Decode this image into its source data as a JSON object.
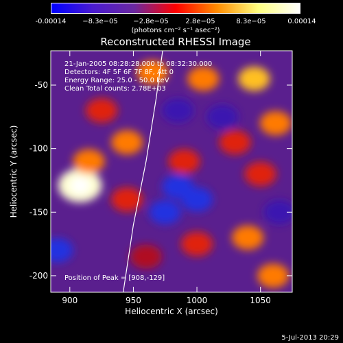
{
  "colorbar": {
    "ticks": [
      "-0.00014",
      "−8.3e−05",
      "−2.8e−05",
      "2.8e−05",
      "8.3e−05",
      "0.00014"
    ],
    "unit": "(photons cm⁻² s⁻¹ asec⁻²)",
    "colors": [
      "#0000ff",
      "#4a1bd0",
      "#6a28a0",
      "#ff0000",
      "#ff8c00",
      "#ffff80",
      "#ffffff"
    ]
  },
  "title": "Reconstructed RHESSI Image",
  "annotations": {
    "time_range": "21-Jan-2005 08:28:28.000 to 08:32:30.000",
    "detectors": "Detectors: 4F 5F 6F 7F 8F, Att 0",
    "energy": "Energy Range: 25.0 - 50.0 keV",
    "clean": "Clean    Total counts: 2.78E+03",
    "peak": "Position of Peak = [908,-129]"
  },
  "axes": {
    "xlabel": "Heliocentric X (arcsec)",
    "ylabel": "Heliocentric Y (arcsec)",
    "xlim": [
      885,
      1075
    ],
    "ylim": [
      -213,
      -23
    ],
    "xticks": [
      900,
      950,
      1000,
      1050
    ],
    "yticks": [
      -50,
      -100,
      -150,
      -200
    ]
  },
  "blobs": [
    {
      "x": 908,
      "y": -129,
      "v": 1.0
    },
    {
      "x": 915,
      "y": -110,
      "v": 0.55
    },
    {
      "x": 925,
      "y": -70,
      "v": 0.45
    },
    {
      "x": 945,
      "y": -95,
      "v": 0.5
    },
    {
      "x": 965,
      "y": -40,
      "v": 0.5
    },
    {
      "x": 1005,
      "y": -45,
      "v": 0.55
    },
    {
      "x": 1045,
      "y": -45,
      "v": 0.8
    },
    {
      "x": 1062,
      "y": -80,
      "v": 0.5
    },
    {
      "x": 1050,
      "y": -120,
      "v": 0.45
    },
    {
      "x": 1040,
      "y": -170,
      "v": 0.55
    },
    {
      "x": 1060,
      "y": -200,
      "v": 0.55
    },
    {
      "x": 990,
      "y": -110,
      "v": 0.35
    },
    {
      "x": 945,
      "y": -140,
      "v": 0.4
    },
    {
      "x": 1000,
      "y": -175,
      "v": 0.3
    },
    {
      "x": 960,
      "y": -185,
      "v": 0.25
    },
    {
      "x": 1030,
      "y": -95,
      "v": 0.35
    },
    {
      "x": 975,
      "y": -150,
      "v": -0.4
    },
    {
      "x": 1000,
      "y": -140,
      "v": -0.45
    },
    {
      "x": 985,
      "y": -130,
      "v": -0.35
    },
    {
      "x": 890,
      "y": -180,
      "v": -0.35
    },
    {
      "x": 1020,
      "y": -75,
      "v": -0.3
    },
    {
      "x": 985,
      "y": -70,
      "v": -0.3
    },
    {
      "x": 1065,
      "y": -150,
      "v": -0.25
    }
  ],
  "limb": [
    [
      973,
      -23
    ],
    [
      968,
      -60
    ],
    [
      960,
      -110
    ],
    [
      950,
      -160
    ],
    [
      942,
      -213
    ]
  ],
  "timestamp": "5-Jul-2013 20:29"
}
